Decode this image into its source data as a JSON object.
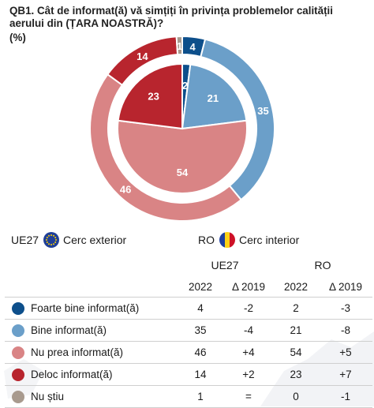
{
  "question": "QB1. Cât de informat(ă) vă simțiți în privința problemelor calității aerului din (ȚARA NOASTRĂ)?",
  "unit": "(%)",
  "legend": {
    "outer_code": "UE27",
    "outer_label": "Cerc exterior",
    "inner_code": "RO",
    "inner_label": "Cerc interior"
  },
  "table": {
    "group_eu": "UE27",
    "group_ro": "RO",
    "year": "2022",
    "delta": "Δ 2019"
  },
  "colors": [
    "#0d4f8b",
    "#6b9fc9",
    "#d98485",
    "#b8252e",
    "#a89a8e"
  ],
  "flag_colors": {
    "eu": "#1f3f98",
    "eu_stars": "#ffd200",
    "ro": [
      "#1e3fa0",
      "#fcd116",
      "#ce1126"
    ]
  },
  "chart_data": {
    "type": "pie",
    "categories": [
      "Foarte bine informat(ă)",
      "Bine informat(ă)",
      "Nu prea informat(ă)",
      "Deloc informat(ă)",
      "Nu știu"
    ],
    "series": [
      {
        "name": "UE27",
        "values": [
          4,
          35,
          46,
          14,
          1
        ],
        "delta_2019": [
          "-2",
          "-4",
          "+4",
          "+2",
          "="
        ]
      },
      {
        "name": "RO",
        "values": [
          2,
          21,
          54,
          23,
          0
        ],
        "delta_2019": [
          "-3",
          "-8",
          "+5",
          "+7",
          "-1"
        ]
      }
    ],
    "outer_ring": "UE27",
    "inner_ring": "RO"
  }
}
